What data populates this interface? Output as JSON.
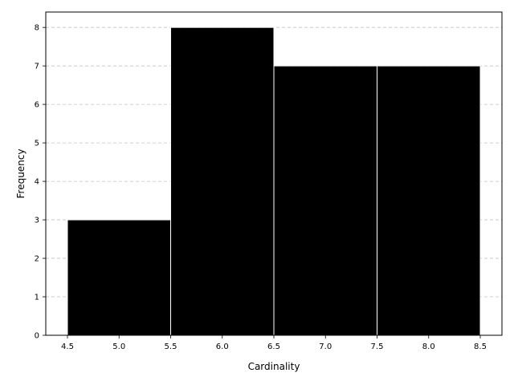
{
  "chart_data": {
    "type": "bar",
    "title": "",
    "xlabel": "Cardinality",
    "ylabel": "Frequency",
    "bins": [
      {
        "start": 4.5,
        "end": 5.5,
        "value": 3
      },
      {
        "start": 5.5,
        "end": 6.5,
        "value": 8
      },
      {
        "start": 6.5,
        "end": 7.5,
        "value": 7
      },
      {
        "start": 7.5,
        "end": 8.5,
        "value": 7
      }
    ],
    "xlim": [
      4.29,
      8.71
    ],
    "ylim": [
      0,
      8.4
    ],
    "xticks": [
      "4.5",
      "5.0",
      "5.5",
      "6.0",
      "6.5",
      "7.0",
      "7.5",
      "8.0",
      "8.5"
    ],
    "yticks": [
      "0",
      "1",
      "2",
      "3",
      "4",
      "5",
      "6",
      "7",
      "8"
    ],
    "grid": "horizontal dashed",
    "bar_color": "#000000",
    "edge_color": "#ffffff",
    "grid_color": "#c0c0c0"
  }
}
